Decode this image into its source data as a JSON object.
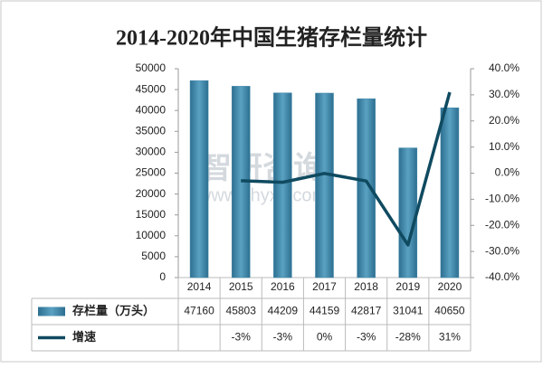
{
  "chart_data": {
    "type": "bar_line_table",
    "title": "2014-2020年中国生猪存栏量统计",
    "watermark": "智研咨询",
    "watermark_url": "www.chyxx.com",
    "categories": [
      "2014",
      "2015",
      "2016",
      "2017",
      "2018",
      "2019",
      "2020"
    ],
    "series": [
      {
        "name": "存栏量（万头）",
        "type": "bar",
        "color": "#3f86a8",
        "values": [
          47160,
          45803,
          44209,
          44159,
          42817,
          31041,
          40650
        ]
      },
      {
        "name": "增速",
        "type": "line",
        "axis": "y2",
        "color": "#0f4a60",
        "values": [
          null,
          -2.9,
          -3.5,
          -0.1,
          -3.0,
          -27.5,
          31.0
        ],
        "value_labels": [
          null,
          "-3%",
          "-3%",
          "0%",
          "-3%",
          "-28%",
          "31%"
        ]
      }
    ],
    "ylim": [
      0,
      50000
    ],
    "yticks": [
      0,
      5000,
      10000,
      15000,
      20000,
      25000,
      30000,
      35000,
      40000,
      45000,
      50000
    ],
    "y2lim": [
      -40,
      40
    ],
    "y2ticks": [
      {
        "value": -40,
        "label": "-40.0%"
      },
      {
        "value": -30,
        "label": "-30.0%"
      },
      {
        "value": -20,
        "label": "-20.0%"
      },
      {
        "value": -10,
        "label": "-10.0%"
      },
      {
        "value": 0,
        "label": "0.0%"
      },
      {
        "value": 10,
        "label": "10.0%"
      },
      {
        "value": 20,
        "label": "20.0%"
      },
      {
        "value": 30,
        "label": "30.0%"
      },
      {
        "value": 40,
        "label": "40.0%"
      }
    ]
  }
}
